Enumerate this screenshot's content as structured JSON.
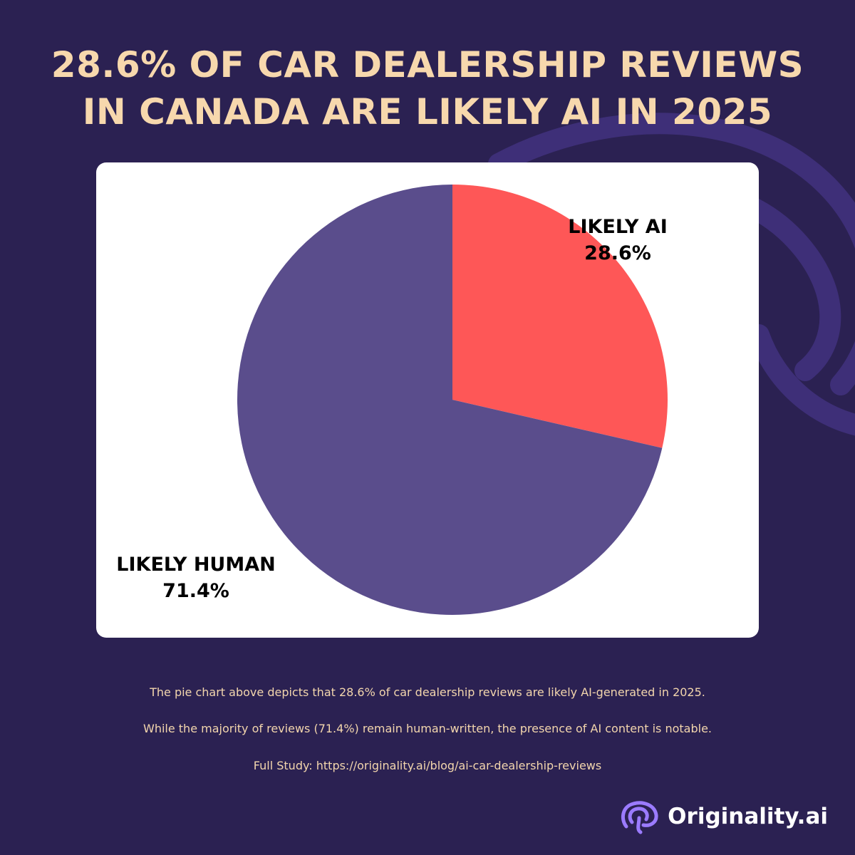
{
  "title": "28.6% OF CAR DEALERSHIP REVIEWS IN CANADA ARE LIKELY AI IN 2025",
  "colors": {
    "background": "#2b2152",
    "title": "#f7d8ad",
    "ai_slice": "#fe5757",
    "human_slice": "#5a4d8c",
    "brand_icon": "#9b7bff"
  },
  "chart_data": {
    "type": "pie",
    "title": "28.6% OF CAR DEALERSHIP REVIEWS IN CANADA ARE LIKELY AI IN 2025",
    "categories": [
      "LIKELY AI",
      "LIKELY HUMAN"
    ],
    "values": [
      28.6,
      71.4
    ],
    "value_labels": [
      "28.6%",
      "71.4%"
    ],
    "start_angle": "12 o'clock",
    "direction": "clockwise",
    "legend": "none"
  },
  "labels": {
    "ai": {
      "name": "LIKELY AI",
      "value": "28.6%"
    },
    "human": {
      "name": "LIKELY HUMAN",
      "value": "71.4%"
    }
  },
  "captions": {
    "line1": "The pie chart above depicts that 28.6% of car dealership reviews are likely AI-generated in 2025.",
    "line2": "While the majority of reviews (71.4%) remain human-written, the presence of AI content is notable.",
    "line3": "Full Study: https://originality.ai/blog/ai-car-dealership-reviews"
  },
  "brand": {
    "name": "Originality.ai",
    "icon": "brain-logo-icon"
  }
}
